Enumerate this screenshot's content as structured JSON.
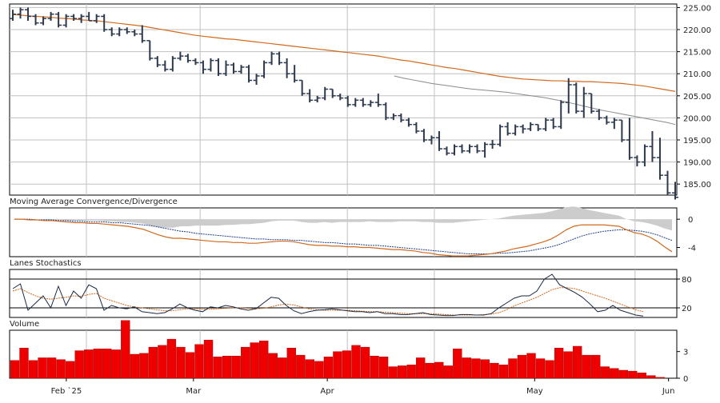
{
  "chart_data": {
    "type": "line",
    "x_labels": [
      "Feb `25",
      "Mar",
      "Apr",
      "May",
      "Jun"
    ],
    "x_label_index": [
      8,
      27,
      47,
      78,
      98
    ],
    "x_grid_index": [
      11,
      28,
      50,
      63,
      93
    ],
    "n_bars": 100,
    "colors": {
      "price": "#2d3a4e",
      "ma_long": "#d2691e",
      "ma_short": "#8a8a8a",
      "macd_line": "#d2691e",
      "macd_signal": "#1f3f8a",
      "macd_hist": "#cccccc",
      "stoch_k": "#1a2a44",
      "stoch_d": "#d2691e",
      "volume": "#ee0000",
      "grid": "#c0c0c0",
      "border": "#000000"
    },
    "price_panel": {
      "y_ticks": [
        "225.00",
        "220.00",
        "215.00",
        "210.00",
        "205.00",
        "200.00",
        "195.00",
        "190.00",
        "185.00"
      ],
      "y_tick_values": [
        225,
        220,
        215,
        210,
        205,
        200,
        195,
        190,
        185
      ],
      "ylim": [
        182.5,
        225.8
      ],
      "ohlc": [
        [
          222.5,
          224.5,
          222.0,
          223.5
        ],
        [
          223.5,
          225.0,
          222.5,
          224.5
        ],
        [
          224.5,
          225.0,
          222.0,
          223.0
        ],
        [
          223.0,
          223.5,
          221.0,
          221.5
        ],
        [
          221.5,
          223.0,
          221.0,
          222.5
        ],
        [
          222.5,
          224.0,
          222.0,
          223.5
        ],
        [
          223.5,
          224.0,
          220.5,
          221.0
        ],
        [
          221.0,
          223.5,
          220.5,
          223.0
        ],
        [
          223.0,
          223.5,
          222.0,
          222.5
        ],
        [
          222.5,
          223.5,
          221.5,
          223.0
        ],
        [
          223.0,
          224.0,
          222.0,
          222.0
        ],
        [
          222.0,
          223.5,
          221.5,
          223.0
        ],
        [
          223.0,
          223.5,
          219.5,
          220.0
        ],
        [
          220.0,
          220.5,
          218.5,
          219.0
        ],
        [
          219.0,
          220.5,
          218.5,
          220.0
        ],
        [
          220.0,
          220.5,
          219.0,
          219.5
        ],
        [
          219.5,
          220.0,
          218.5,
          219.0
        ],
        [
          219.0,
          221.0,
          217.0,
          217.5
        ],
        [
          217.5,
          217.5,
          213.0,
          213.5
        ],
        [
          213.5,
          214.0,
          211.5,
          212.0
        ],
        [
          212.0,
          213.0,
          210.5,
          211.0
        ],
        [
          211.0,
          214.0,
          210.5,
          213.5
        ],
        [
          213.5,
          215.0,
          213.0,
          214.0
        ],
        [
          214.0,
          214.5,
          212.5,
          213.0
        ],
        [
          213.0,
          213.5,
          212.0,
          212.5
        ],
        [
          212.5,
          213.0,
          210.0,
          211.0
        ],
        [
          211.0,
          213.5,
          210.5,
          213.0
        ],
        [
          213.0,
          213.5,
          209.5,
          210.0
        ],
        [
          210.0,
          213.0,
          209.5,
          212.0
        ],
        [
          212.0,
          212.5,
          210.0,
          210.5
        ],
        [
          210.5,
          212.0,
          210.0,
          211.5
        ],
        [
          211.5,
          212.0,
          208.0,
          208.5
        ],
        [
          208.5,
          210.0,
          207.5,
          209.5
        ],
        [
          209.5,
          213.0,
          209.0,
          212.5
        ],
        [
          212.5,
          215.0,
          212.0,
          214.5
        ],
        [
          214.5,
          215.0,
          212.0,
          212.5
        ],
        [
          212.5,
          213.5,
          209.0,
          210.0
        ],
        [
          210.0,
          212.0,
          208.0,
          208.5
        ],
        [
          208.5,
          208.5,
          205.0,
          205.5
        ],
        [
          205.5,
          206.5,
          203.5,
          204.0
        ],
        [
          204.0,
          205.0,
          203.5,
          204.5
        ],
        [
          204.5,
          207.0,
          204.0,
          206.5
        ],
        [
          206.5,
          206.5,
          204.5,
          205.0
        ],
        [
          205.0,
          205.5,
          204.0,
          204.5
        ],
        [
          204.5,
          205.0,
          202.5,
          203.0
        ],
        [
          203.0,
          204.5,
          202.5,
          204.0
        ],
        [
          204.0,
          204.5,
          202.5,
          203.0
        ],
        [
          203.0,
          204.0,
          202.5,
          203.5
        ],
        [
          203.5,
          205.5,
          202.5,
          203.0
        ],
        [
          203.0,
          203.5,
          199.5,
          200.0
        ],
        [
          200.0,
          201.0,
          199.5,
          200.5
        ],
        [
          200.5,
          201.0,
          199.0,
          199.5
        ],
        [
          199.5,
          200.0,
          198.0,
          198.5
        ],
        [
          198.5,
          199.0,
          196.5,
          197.0
        ],
        [
          197.0,
          197.5,
          194.5,
          195.0
        ],
        [
          195.0,
          196.0,
          194.0,
          195.5
        ],
        [
          195.5,
          197.0,
          192.5,
          193.0
        ],
        [
          193.0,
          193.5,
          191.5,
          192.0
        ],
        [
          192.0,
          194.0,
          191.5,
          193.5
        ],
        [
          193.5,
          194.0,
          192.0,
          192.5
        ],
        [
          192.5,
          194.0,
          192.0,
          193.5
        ],
        [
          193.5,
          194.0,
          192.0,
          192.5
        ],
        [
          192.5,
          194.5,
          191.0,
          194.0
        ],
        [
          194.0,
          195.0,
          193.0,
          194.0
        ],
        [
          194.0,
          198.5,
          193.5,
          198.0
        ],
        [
          198.0,
          199.0,
          196.0,
          196.5
        ],
        [
          196.5,
          198.5,
          196.0,
          198.0
        ],
        [
          198.0,
          198.5,
          196.5,
          197.5
        ],
        [
          197.5,
          199.0,
          197.0,
          198.5
        ],
        [
          198.5,
          198.5,
          197.0,
          197.5
        ],
        [
          197.5,
          200.0,
          197.0,
          199.5
        ],
        [
          199.5,
          200.0,
          197.5,
          198.0
        ],
        [
          198.0,
          204.0,
          197.5,
          203.5
        ],
        [
          203.5,
          209.0,
          201.0,
          207.5
        ],
        [
          207.5,
          208.0,
          201.0,
          201.5
        ],
        [
          201.5,
          207.0,
          200.0,
          205.5
        ],
        [
          205.5,
          205.5,
          201.0,
          201.5
        ],
        [
          201.5,
          202.0,
          199.5,
          200.0
        ],
        [
          200.0,
          200.5,
          198.5,
          199.0
        ],
        [
          199.0,
          200.0,
          197.5,
          199.5
        ],
        [
          199.5,
          199.5,
          194.5,
          195.0
        ],
        [
          195.0,
          200.0,
          190.5,
          191.0
        ],
        [
          191.0,
          191.5,
          189.0,
          190.0
        ],
        [
          190.0,
          194.0,
          189.0,
          193.5
        ],
        [
          193.5,
          197.0,
          190.0,
          191.0
        ],
        [
          191.0,
          195.5,
          186.0,
          187.0
        ],
        [
          187.0,
          188.0,
          182.5,
          183.0
        ],
        [
          183.0,
          185.5,
          181.5,
          182.0
        ]
      ],
      "ma_long": [
        223.4,
        223.3,
        223.1,
        223.0,
        222.9,
        222.8,
        222.6,
        222.5,
        222.4,
        222.2,
        222.1,
        222.0,
        221.8,
        221.6,
        221.4,
        221.2,
        221.0,
        220.8,
        220.5,
        220.2,
        219.9,
        219.6,
        219.3,
        219.0,
        218.7,
        218.5,
        218.3,
        218.1,
        217.9,
        217.8,
        217.6,
        217.4,
        217.2,
        217.0,
        216.8,
        216.6,
        216.4,
        216.2,
        216.0,
        215.8,
        215.6,
        215.4,
        215.2,
        215.0,
        214.8,
        214.6,
        214.4,
        214.2,
        214.0,
        213.7,
        213.4,
        213.1,
        212.9,
        212.6,
        212.3,
        212.0,
        211.7,
        211.4,
        211.2,
        210.9,
        210.6,
        210.3,
        210.0,
        209.7,
        209.4,
        209.2,
        209.0,
        208.8,
        208.7,
        208.6,
        208.5,
        208.4,
        208.4,
        208.3,
        208.3,
        208.2,
        208.2,
        208.1,
        208.0,
        207.9,
        207.8,
        207.6,
        207.4,
        207.2,
        206.9,
        206.6,
        206.3,
        206.0
      ],
      "ma_short_start": 57,
      "ma_short": [
        209.5,
        209.0,
        208.6,
        208.2,
        207.8,
        207.5,
        207.2,
        206.9,
        206.6,
        206.4,
        206.2,
        206.0,
        205.8,
        205.5,
        205.2,
        204.9,
        204.6,
        204.2,
        203.8,
        203.3,
        202.8,
        202.3,
        201.8,
        201.4,
        201.0,
        200.6,
        200.2,
        199.8,
        199.4,
        199.0,
        198.5
      ]
    },
    "macd_panel": {
      "title": "Moving Average Convergence/Divergence",
      "y_ticks": [
        "0",
        "-4"
      ],
      "y_tick_values": [
        0,
        -4
      ],
      "ylim": [
        -5.3,
        1.6
      ],
      "macd": [
        0.0,
        0.0,
        -0.1,
        -0.1,
        -0.2,
        -0.2,
        -0.3,
        -0.4,
        -0.5,
        -0.5,
        -0.6,
        -0.6,
        -0.7,
        -0.8,
        -0.9,
        -1.0,
        -1.2,
        -1.4,
        -1.8,
        -2.2,
        -2.5,
        -2.7,
        -2.7,
        -2.8,
        -2.9,
        -3.0,
        -3.1,
        -3.2,
        -3.2,
        -3.3,
        -3.3,
        -3.4,
        -3.4,
        -3.3,
        -3.2,
        -3.1,
        -3.1,
        -3.2,
        -3.4,
        -3.6,
        -3.7,
        -3.7,
        -3.8,
        -3.8,
        -3.9,
        -3.9,
        -4.0,
        -4.0,
        -4.1,
        -4.2,
        -4.3,
        -4.3,
        -4.4,
        -4.5,
        -4.7,
        -4.8,
        -5.0,
        -5.1,
        -5.2,
        -5.2,
        -5.2,
        -5.1,
        -5.0,
        -4.9,
        -4.7,
        -4.5,
        -4.2,
        -4.0,
        -3.8,
        -3.5,
        -3.2,
        -2.8,
        -2.2,
        -1.5,
        -1.0,
        -0.8,
        -0.8,
        -0.8,
        -0.8,
        -0.9,
        -1.0,
        -1.5,
        -1.9,
        -2.1,
        -2.5,
        -3.1,
        -3.9,
        -4.6
      ],
      "signal": [
        0.0,
        0.0,
        0.0,
        -0.1,
        -0.1,
        -0.1,
        -0.2,
        -0.2,
        -0.3,
        -0.3,
        -0.4,
        -0.4,
        -0.4,
        -0.5,
        -0.5,
        -0.6,
        -0.7,
        -0.8,
        -0.9,
        -1.1,
        -1.3,
        -1.5,
        -1.7,
        -1.8,
        -2.0,
        -2.1,
        -2.2,
        -2.3,
        -2.4,
        -2.5,
        -2.6,
        -2.7,
        -2.8,
        -2.8,
        -2.9,
        -2.9,
        -2.9,
        -3.0,
        -3.0,
        -3.1,
        -3.2,
        -3.3,
        -3.3,
        -3.4,
        -3.5,
        -3.5,
        -3.6,
        -3.7,
        -3.7,
        -3.8,
        -3.9,
        -4.0,
        -4.1,
        -4.2,
        -4.3,
        -4.4,
        -4.5,
        -4.6,
        -4.7,
        -4.8,
        -4.9,
        -4.9,
        -4.9,
        -4.9,
        -4.8,
        -4.8,
        -4.7,
        -4.6,
        -4.5,
        -4.3,
        -4.1,
        -3.9,
        -3.6,
        -3.2,
        -2.8,
        -2.4,
        -2.1,
        -1.9,
        -1.7,
        -1.6,
        -1.5,
        -1.5,
        -1.6,
        -1.7,
        -1.9,
        -2.2,
        -2.6,
        -3.0
      ]
    },
    "stoch_panel": {
      "title": "Lanes Stochastics",
      "y_ticks": [
        "80",
        "20"
      ],
      "y_tick_values": [
        80,
        20
      ],
      "ylim": [
        0,
        100
      ],
      "k": [
        60,
        70,
        15,
        30,
        45,
        20,
        65,
        25,
        55,
        40,
        68,
        60,
        15,
        25,
        20,
        18,
        22,
        12,
        10,
        8,
        10,
        18,
        28,
        20,
        15,
        12,
        22,
        20,
        25,
        22,
        18,
        15,
        18,
        30,
        42,
        40,
        25,
        14,
        8,
        12,
        15,
        16,
        18,
        16,
        14,
        12,
        12,
        10,
        12,
        8,
        8,
        6,
        6,
        8,
        10,
        6,
        5,
        4,
        4,
        6,
        6,
        5,
        5,
        8,
        20,
        30,
        40,
        45,
        45,
        55,
        80,
        90,
        68,
        60,
        52,
        42,
        28,
        12,
        15,
        25,
        15,
        10,
        5,
        3
      ],
      "d": [
        55,
        60,
        52,
        45,
        40,
        38,
        40,
        42,
        45,
        44,
        48,
        50,
        40,
        35,
        30,
        25,
        22,
        20,
        18,
        16,
        14,
        14,
        16,
        18,
        18,
        17,
        17,
        18,
        19,
        20,
        20,
        19,
        18,
        19,
        22,
        26,
        28,
        26,
        22,
        18,
        16,
        15,
        15,
        15,
        15,
        14,
        13,
        12,
        12,
        11,
        10,
        9,
        8,
        8,
        8,
        8,
        7,
        6,
        5,
        5,
        5,
        5,
        6,
        7,
        10,
        16,
        24,
        30,
        36,
        42,
        50,
        58,
        62,
        62,
        60,
        55,
        50,
        45,
        40,
        34,
        28,
        22,
        16,
        12
      ]
    },
    "volume_panel": {
      "title": "Volume",
      "y_ticks": [
        "3",
        "0"
      ],
      "y_tick_values": [
        3,
        0
      ],
      "ylim": [
        0,
        5.4
      ],
      "values": [
        2.0,
        3.4,
        2.0,
        2.3,
        2.3,
        2.1,
        1.9,
        3.1,
        3.2,
        3.3,
        3.3,
        3.2,
        6.5,
        2.7,
        2.8,
        3.5,
        3.7,
        4.4,
        3.5,
        2.9,
        3.8,
        4.3,
        2.4,
        2.5,
        2.5,
        3.5,
        4.0,
        4.2,
        2.8,
        2.3,
        3.4,
        2.6,
        2.1,
        1.9,
        2.4,
        3.0,
        3.1,
        3.7,
        3.5,
        2.5,
        2.4,
        1.3,
        1.4,
        1.5,
        2.3,
        1.7,
        1.8,
        1.4,
        3.3,
        2.3,
        2.2,
        2.1,
        1.7,
        1.5,
        2.2,
        2.6,
        2.8,
        2.2,
        2.0,
        3.4,
        3.0,
        3.6,
        2.6,
        2.6,
        1.3,
        1.1,
        0.9,
        0.8,
        0.6,
        0.3,
        0.1,
        0.0
      ]
    }
  }
}
